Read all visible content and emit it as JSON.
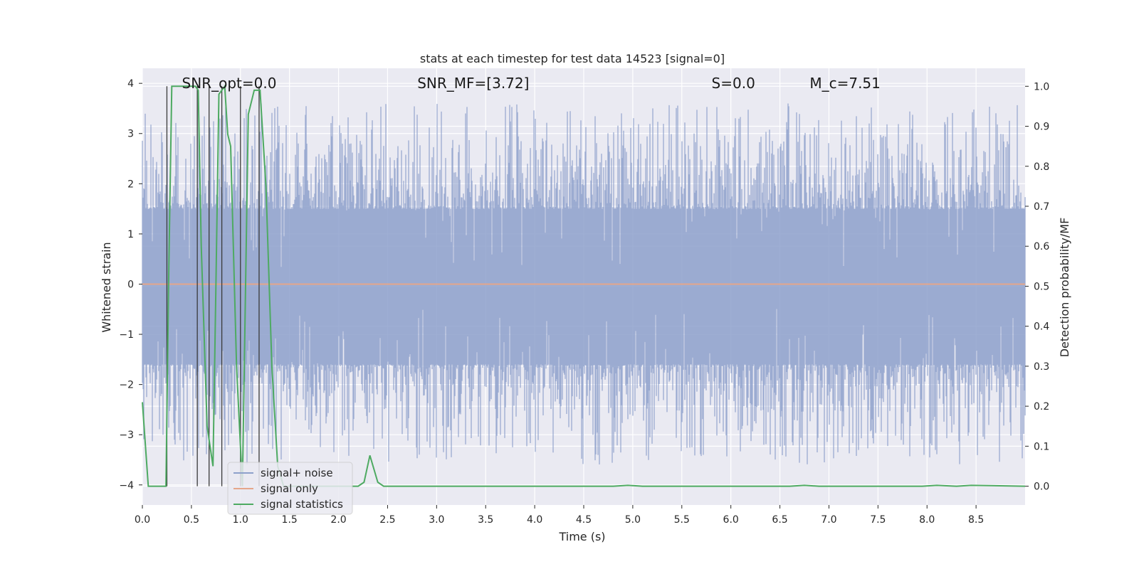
{
  "chart_data": {
    "type": "line",
    "title": "stats at each timestep for test data 14523 [signal=0]",
    "xlabel": "Time (s)",
    "ylabel": "Whitened strain",
    "y2label": "Detection probability/MF",
    "xlim": [
      0.0,
      9.0
    ],
    "ylim": [
      -4.4,
      4.3
    ],
    "y2lim": [
      -0.047,
      1.045
    ],
    "xticks": [
      "0.0",
      "0.5",
      "1.0",
      "1.5",
      "2.0",
      "2.5",
      "3.0",
      "3.5",
      "4.0",
      "4.5",
      "5.0",
      "5.5",
      "6.0",
      "6.5",
      "7.0",
      "7.5",
      "8.0",
      "8.5"
    ],
    "yticks": [
      "4",
      "3",
      "2",
      "1",
      "0",
      "−1",
      "−2",
      "−3",
      "−4"
    ],
    "y2ticks": [
      "1.0",
      "0.9",
      "0.8",
      "0.7",
      "0.6",
      "0.5",
      "0.4",
      "0.3",
      "0.2",
      "0.1",
      "0.0"
    ],
    "grid": true,
    "legend_position": "lower-left",
    "annotations": [
      {
        "text": "SNR_opt=0.0",
        "x": 0.2
      },
      {
        "text": "SNR_MF=[3.72]",
        "x": 2.6
      },
      {
        "text": "S=0.0",
        "x": 5.6
      },
      {
        "text": "M_c=7.51",
        "x": 6.6
      }
    ],
    "noise_profile": {
      "envelope_upper": 1.5,
      "envelope_lower": -1.6,
      "peak_upper": 3.6,
      "peak_lower": -3.6
    },
    "series": [
      {
        "name": "signal+ noise",
        "color": "#8da0cb",
        "axis": "left",
        "kind": "noise"
      },
      {
        "name": "signal only",
        "color": "#e5a68a",
        "axis": "left",
        "kind": "flat",
        "value": 0.0
      },
      {
        "name": "signal statistics",
        "color": "#4eaa62",
        "axis": "right",
        "kind": "line",
        "x": [
          0.0,
          0.06,
          0.12,
          0.18,
          0.24,
          0.27,
          0.3,
          0.36,
          0.42,
          0.48,
          0.54,
          0.57,
          0.6,
          0.66,
          0.72,
          0.75,
          0.78,
          0.84,
          0.87,
          0.9,
          0.96,
          1.02,
          1.08,
          1.14,
          1.2,
          1.26,
          1.32,
          1.38,
          1.44,
          1.5,
          1.8,
          2.0,
          2.1,
          2.2,
          2.26,
          2.32,
          2.4,
          2.46,
          2.6,
          3.0,
          4.0,
          4.5,
          4.8,
          4.95,
          5.1,
          6.0,
          6.6,
          6.75,
          6.9,
          7.5,
          7.95,
          8.1,
          8.3,
          8.45,
          9.0
        ],
        "values": [
          0.21,
          0.0,
          0.0,
          0.0,
          0.0,
          0.55,
          1.0,
          1.0,
          1.0,
          1.0,
          1.0,
          0.99,
          0.6,
          0.15,
          0.05,
          0.5,
          0.98,
          1.0,
          0.88,
          0.85,
          0.3,
          0.0,
          0.93,
          0.99,
          0.99,
          0.75,
          0.3,
          0.05,
          0.0,
          0.0,
          0.0,
          0.0,
          0.0,
          0.0,
          0.01,
          0.077,
          0.01,
          0.0,
          0.0,
          0.0,
          0.0,
          0.0,
          0.0,
          0.002,
          0.0,
          0.0,
          0.0,
          0.002,
          0.0,
          0.0,
          0.0,
          0.002,
          0.0,
          0.002,
          0.0
        ]
      }
    ],
    "vertical_lines_x": [
      0.25,
      0.56,
      0.68,
      0.81,
      1.0,
      1.19
    ]
  }
}
